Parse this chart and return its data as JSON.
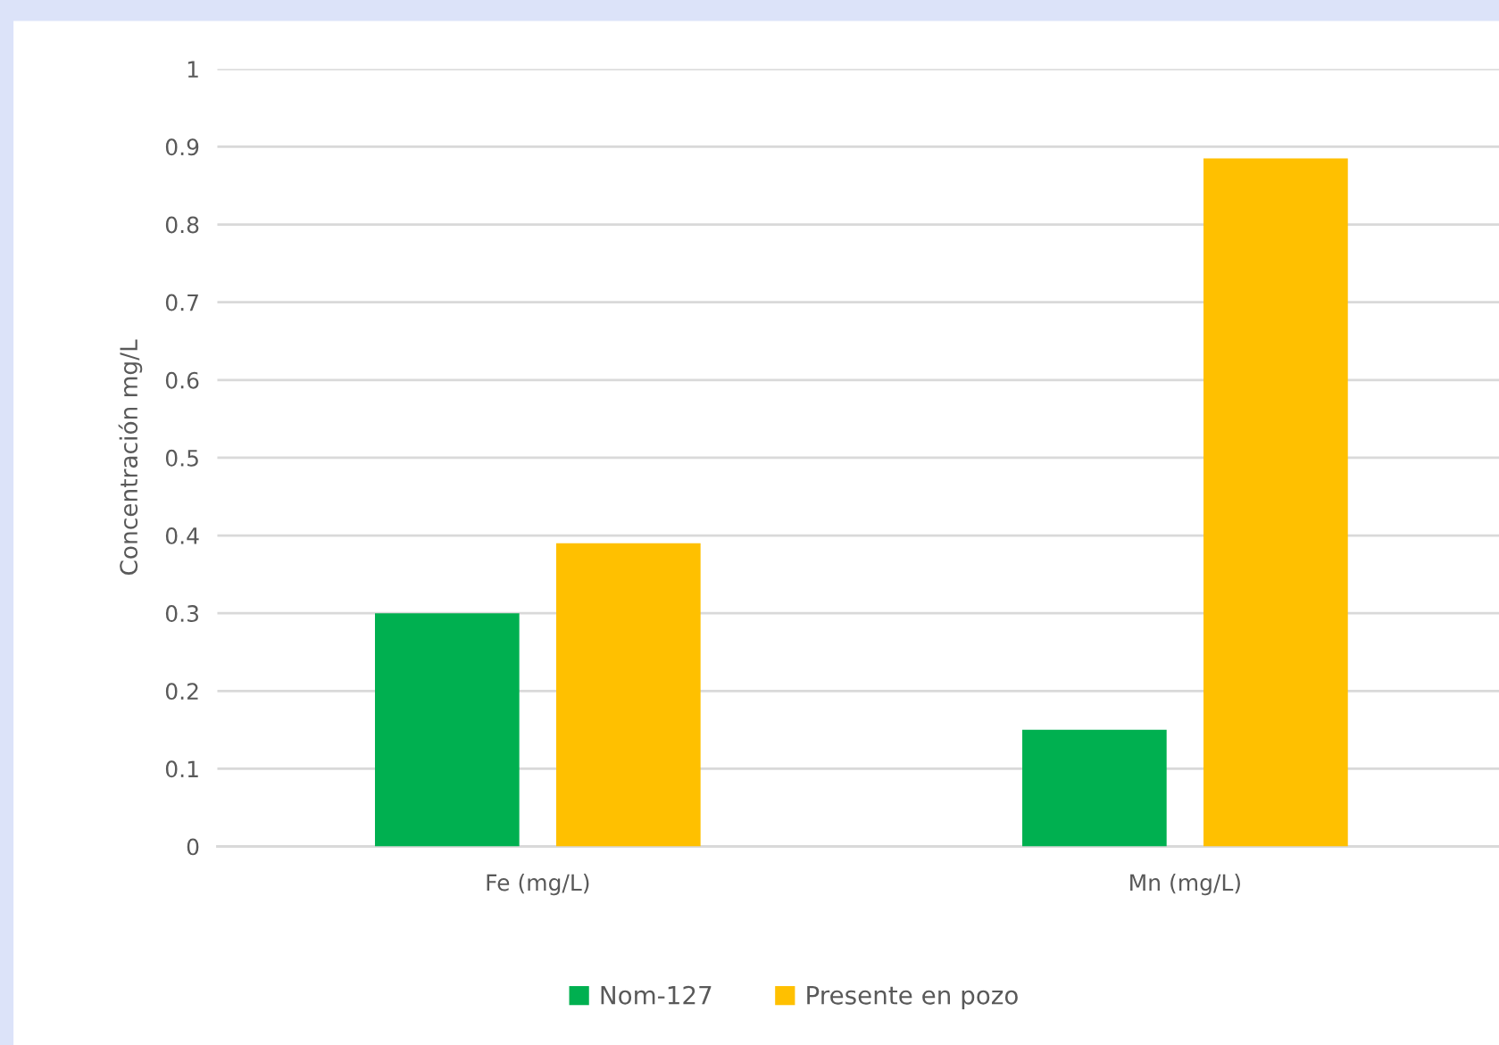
{
  "chart_data": {
    "type": "bar",
    "ylabel": "Concentración mg/L",
    "categories": [
      "Fe (mg/L)",
      "Mn (mg/L)"
    ],
    "series": [
      {
        "name": "Nom-127",
        "color": "#00b050",
        "values": [
          0.3,
          0.15
        ]
      },
      {
        "name": "Presente en pozo",
        "color": "#ffc000",
        "values": [
          0.39,
          0.885
        ]
      }
    ],
    "ylim": [
      0,
      1
    ],
    "yticks": [
      0,
      0.1,
      0.2,
      0.3,
      0.4,
      0.5,
      0.6,
      0.7,
      0.8,
      0.9,
      1
    ],
    "grid": "y",
    "legend": "bottom"
  }
}
